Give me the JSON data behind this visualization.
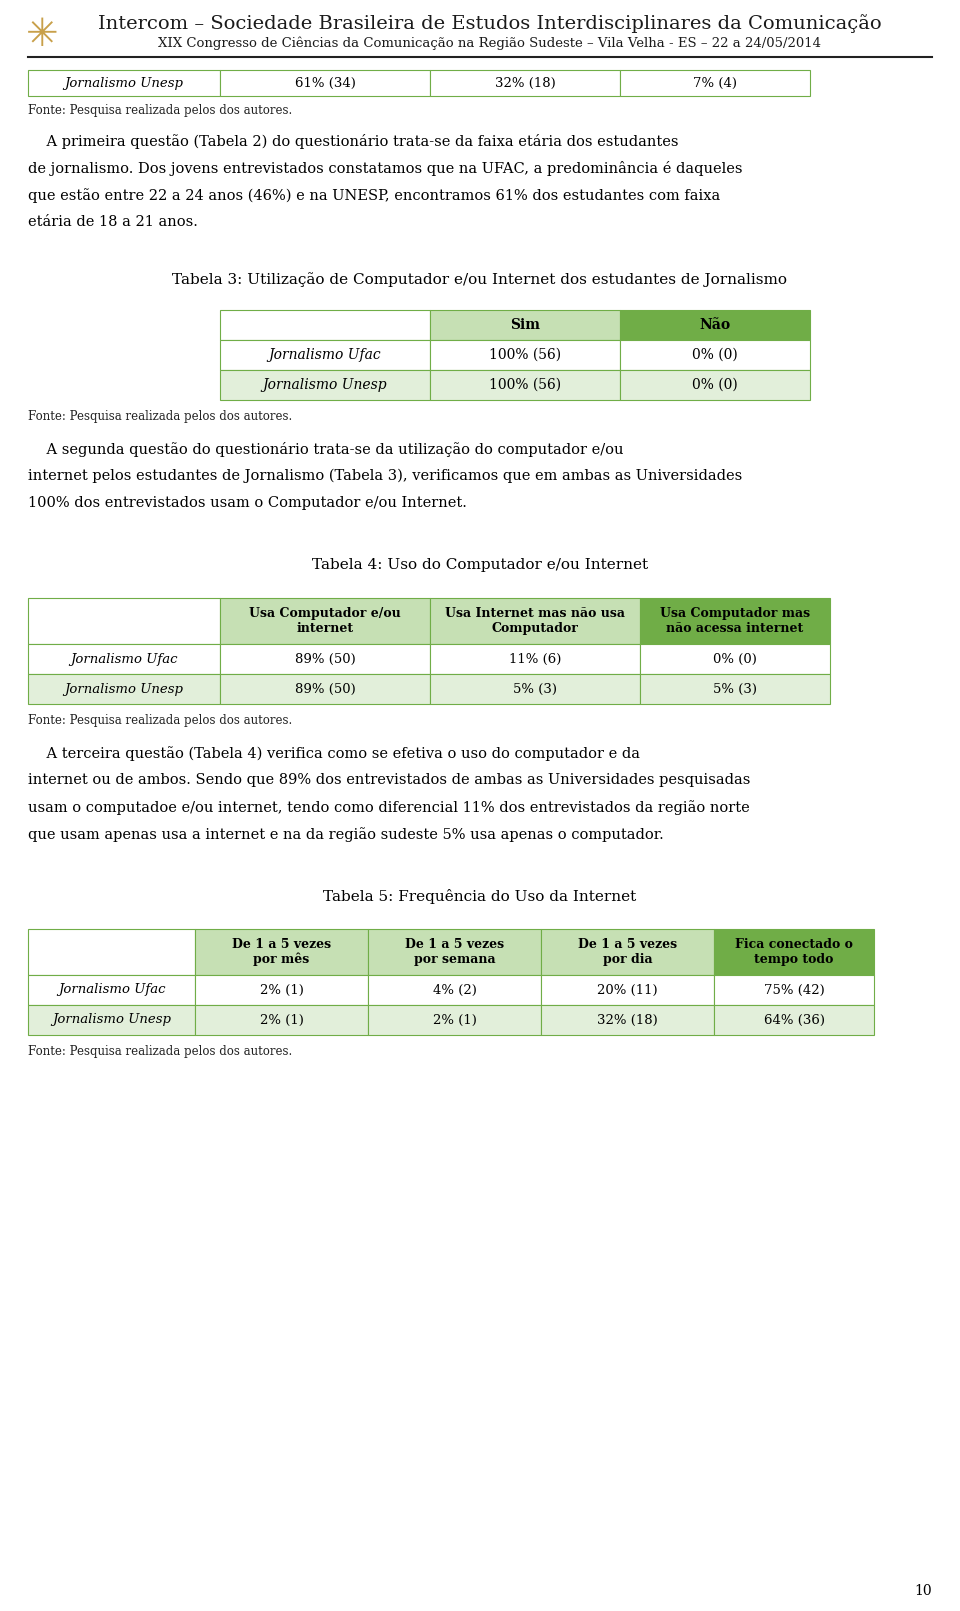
{
  "page_width": 9.6,
  "page_height": 16.11,
  "bg_color": "#ffffff",
  "header_title": "Intercom – Sociedade Brasileira de Estudos Interdisciplinares da Comunicação",
  "header_subtitle": "XIX Congresso de Ciências da Comunicação na Região Sudeste – Vila Velha - ES – 22 a 24/05/2014",
  "header_logo_color": "#c8a04a",
  "top_fonte": "Fonte: Pesquisa realizada pelos dos autores.",
  "tabela3_title": "Tabela 3: Utilização de Computador e/ou Internet dos estudantes de Jornalismo",
  "tabela3_header": [
    "",
    "Sim",
    "Não"
  ],
  "tabela3_rows": [
    [
      "Jornalismo Ufac",
      "100% (56)",
      "0% (0)"
    ],
    [
      "Jornalismo Unesp",
      "100% (56)",
      "0% (0)"
    ]
  ],
  "tabela3_header_bg": [
    "#ffffff",
    "#c6e0b4",
    "#70ad47"
  ],
  "tabela3_row1_bg": [
    "#ffffff",
    "#ffffff",
    "#ffffff"
  ],
  "tabela3_row2_bg": [
    "#e2efda",
    "#e2efda",
    "#e2efda"
  ],
  "fonte3": "Fonte: Pesquisa realizada pelos dos autores.",
  "tabela4_title": "Tabela 4: Uso do Computador e/ou Internet",
  "tabela4_header": [
    "",
    "Usa Computador e/ou\ninternet",
    "Usa Internet mas não usa\nComputador",
    "Usa Computador mas\nnão acessa internet"
  ],
  "tabela4_rows": [
    [
      "Jornalismo Ufac",
      "89% (50)",
      "11% (6)",
      "0% (0)"
    ],
    [
      "Jornalismo Unesp",
      "89% (50)",
      "5% (3)",
      "5% (3)"
    ]
  ],
  "tabela4_header_bg": [
    "#ffffff",
    "#c6e0b4",
    "#c6e0b4",
    "#70ad47"
  ],
  "tabela4_row1_bg": [
    "#ffffff",
    "#ffffff",
    "#ffffff",
    "#ffffff"
  ],
  "tabela4_row2_bg": [
    "#e2efda",
    "#e2efda",
    "#e2efda",
    "#e2efda"
  ],
  "fonte4": "Fonte: Pesquisa realizada pelos dos autores.",
  "tabela5_title": "Tabela 5: Frequência do Uso da Internet",
  "tabela5_header": [
    "",
    "De 1 a 5 vezes\npor mês",
    "De 1 a 5 vezes\npor semana",
    "De 1 a 5 vezes\npor dia",
    "Fica conectado o\ntempo todo"
  ],
  "tabela5_rows": [
    [
      "Jornalismo Ufac",
      "2% (1)",
      "4% (2)",
      "20% (11)",
      "75% (42)"
    ],
    [
      "Jornalismo Unesp",
      "2% (1)",
      "2% (1)",
      "32% (18)",
      "64% (36)"
    ]
  ],
  "tabela5_header_bg": [
    "#ffffff",
    "#c6e0b4",
    "#c6e0b4",
    "#c6e0b4",
    "#70ad47"
  ],
  "tabela5_row1_bg": [
    "#ffffff",
    "#ffffff",
    "#ffffff",
    "#ffffff",
    "#ffffff"
  ],
  "tabela5_row2_bg": [
    "#e2efda",
    "#e2efda",
    "#e2efda",
    "#e2efda",
    "#e2efda"
  ],
  "fonte5": "Fonte: Pesquisa realizada pelos dos autores.",
  "page_num": "10",
  "green_dark": "#70ad47",
  "green_light": "#c6e0b4",
  "green_vlight": "#e2efda",
  "border_color": "#70ad47"
}
